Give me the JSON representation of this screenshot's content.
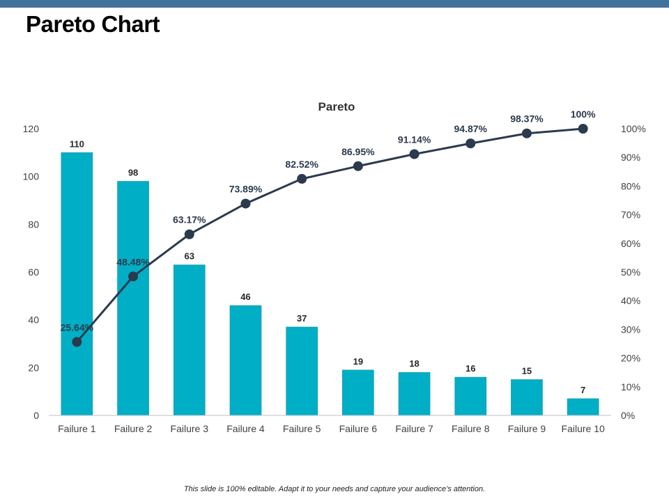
{
  "slide": {
    "title": "Pareto Chart",
    "footer": "This slide is 100% editable. Adapt it to your needs and capture your audience’s attention.",
    "accent_color": "#41729a"
  },
  "chart_data": {
    "type": "bar",
    "title": "Pareto",
    "categories": [
      "Failure 1",
      "Failure 2",
      "Failure 3",
      "Failure 4",
      "Failure 5",
      "Failure 6",
      "Failure 7",
      "Failure 8",
      "Failure 9",
      "Failure 10"
    ],
    "series": [
      {
        "type": "bar",
        "axis": "left",
        "color": "#00afc6",
        "values": [
          110,
          98,
          63,
          46,
          37,
          19,
          18,
          16,
          15,
          7
        ],
        "labels": [
          "110",
          "98",
          "63",
          "46",
          "37",
          "19",
          "18",
          "16",
          "15",
          "7"
        ]
      },
      {
        "type": "line",
        "axis": "right",
        "color": "#2b3a4d",
        "values": [
          25.64,
          48.48,
          63.17,
          73.89,
          82.52,
          86.95,
          91.14,
          94.87,
          98.37,
          100
        ],
        "labels": [
          "25.64%",
          "48.48%",
          "63.17%",
          "73.89%",
          "82.52%",
          "86.95%",
          "91.14%",
          "94.87%",
          "98.37%",
          "100%"
        ]
      }
    ],
    "y_left": {
      "min": 0,
      "max": 120,
      "ticks": [
        "0",
        "20",
        "40",
        "60",
        "80",
        "100",
        "120"
      ]
    },
    "y_right": {
      "min": 0,
      "max": 100,
      "ticks": [
        "0%",
        "10%",
        "20%",
        "30%",
        "40%",
        "50%",
        "60%",
        "70%",
        "80%",
        "90%",
        "100%"
      ]
    },
    "grid": false,
    "legend": "none"
  }
}
